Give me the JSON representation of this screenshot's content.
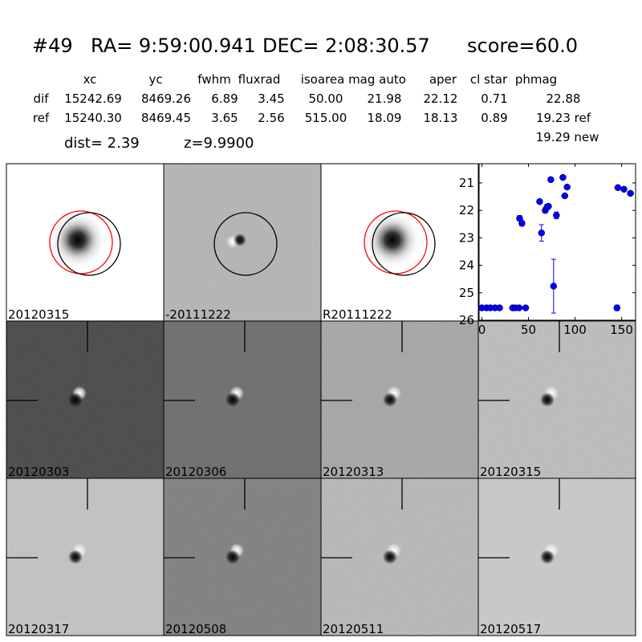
{
  "header": {
    "id": "#49",
    "ra": "RA= 9:59:00.941",
    "dec": "DEC= 2:08:30.57",
    "score": "score=60.0"
  },
  "table": {
    "columns": [
      "xc",
      "yc",
      "fwhm",
      "fluxrad",
      "isoarea",
      "mag auto",
      "aper",
      "cl star",
      "phmag"
    ],
    "rows": [
      [
        "dif",
        "15242.69",
        "8469.26",
        "6.89",
        "3.45",
        "50.00",
        "21.98",
        "22.12",
        "0.71",
        "22.88"
      ],
      [
        "ref",
        "15240.30",
        "8469.45",
        "3.65",
        "2.56",
        "515.00",
        "18.09",
        "18.13",
        "0.89",
        "19.23 ref"
      ]
    ],
    "extra": "19.29 new"
  },
  "dist": "dist=  2.39",
  "z": "z=9.9900",
  "panels": [
    "20120315",
    "-20111222",
    "R20111222",
    null,
    "20120303",
    "20120306",
    "20120313",
    "20120315",
    "20120317",
    "20120508",
    "20120511",
    "20120517"
  ],
  "highlight_color": "#ff0000",
  "chart_data": {
    "type": "scatter",
    "x": [
      0,
      5,
      9,
      14,
      19,
      33,
      36,
      40,
      47,
      40.5,
      43,
      62,
      64,
      68,
      70,
      71.5,
      74,
      77,
      80,
      87,
      89,
      91.5,
      145,
      146,
      152.5,
      159.5
    ],
    "series": [
      {
        "color": "#0000ff",
        "values": [
          25.55,
          25.55,
          25.55,
          25.55,
          25.55,
          25.55,
          25.55,
          25.55,
          25.55,
          22.29,
          22.47,
          21.68,
          22.82,
          22.0,
          21.88,
          21.85,
          20.88,
          24.76,
          22.18,
          20.8,
          21.47,
          21.15,
          25.55,
          21.17,
          21.23,
          21.38
        ],
        "errors": [
          0.05,
          0.05,
          0.05,
          0.05,
          0.05,
          0.05,
          0.05,
          0.05,
          0.05,
          0.1,
          0.1,
          0.05,
          0.3,
          0.1,
          0.1,
          0.05,
          0.05,
          0.98,
          0.12,
          0.05,
          0.05,
          0.05,
          0.1,
          0.05,
          0.05,
          0.05
        ]
      }
    ],
    "xlim": [
      -3,
      165
    ],
    "ylim": [
      26,
      20.3
    ],
    "xticks": [
      0,
      50,
      100,
      150
    ],
    "yticks": [
      21,
      22,
      23,
      24,
      25,
      26
    ]
  }
}
